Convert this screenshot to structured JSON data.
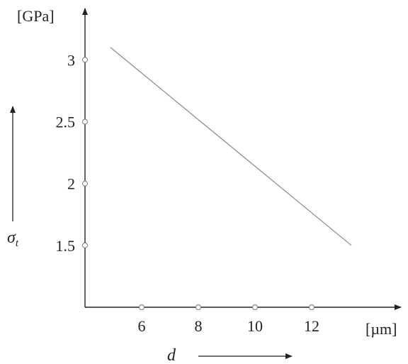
{
  "chart_data": {
    "type": "line",
    "x_unit": "[µm]",
    "y_unit": "[GPa]",
    "x_symbol": "d",
    "y_symbol": "σ",
    "y_symbol_subscript": "t",
    "x_ticks": [
      6,
      8,
      10,
      12
    ],
    "y_ticks": [
      1.5,
      2,
      2.5,
      3
    ],
    "y_tick_labels": [
      "1.5",
      "2",
      "2.5",
      "3"
    ],
    "xlim": [
      4,
      14
    ],
    "ylim": [
      1,
      3.3
    ],
    "grid": false,
    "series": [
      {
        "x": [
          4.9,
          13.4
        ],
        "y": [
          3.1,
          1.5
        ]
      }
    ]
  }
}
